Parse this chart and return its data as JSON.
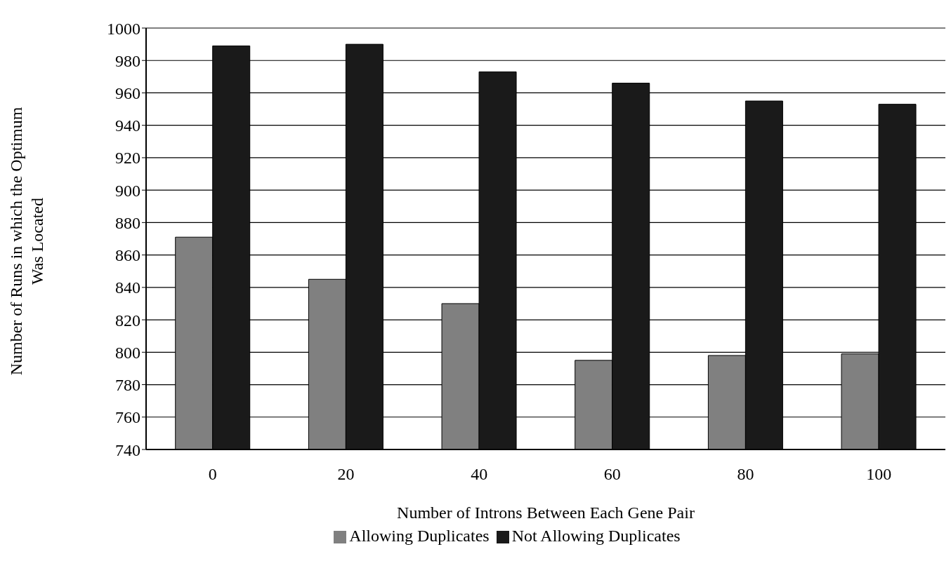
{
  "chart_data": {
    "type": "bar",
    "xlabel": "Number of Introns Between Each Gene Pair",
    "ylabel": "Number of Runs in which the Optimum Was Located",
    "categories": [
      "0",
      "20",
      "40",
      "60",
      "80",
      "100"
    ],
    "series": [
      {
        "name": "Allowing Duplicates",
        "color": "#808080",
        "values": [
          871,
          845,
          830,
          795,
          798,
          799
        ]
      },
      {
        "name": "Not Allowing Duplicates",
        "color": "#1a1a1a",
        "values": [
          989,
          990,
          973,
          966,
          955,
          953
        ]
      }
    ],
    "ylim": [
      740,
      1000
    ],
    "yticks": [
      740,
      760,
      780,
      800,
      820,
      840,
      860,
      880,
      900,
      920,
      940,
      960,
      980,
      1000
    ],
    "grid": "y",
    "legend": "bottom"
  }
}
